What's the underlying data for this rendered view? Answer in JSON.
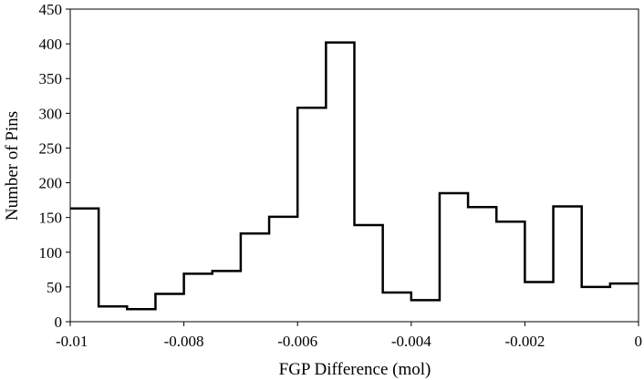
{
  "chart_data": {
    "type": "line",
    "subtype": "step-histogram",
    "xlabel": "FGP Difference (mol)",
    "ylabel": "Number of Pins",
    "xlim": [
      -0.01,
      0
    ],
    "ylim": [
      0,
      450
    ],
    "x_ticks": [
      -0.01,
      -0.008,
      -0.006,
      -0.004,
      -0.002,
      0
    ],
    "x_tick_labels": [
      "-0.01",
      "-0.008",
      "-0.006",
      "-0.004",
      "-0.002",
      "0"
    ],
    "y_ticks": [
      0,
      50,
      100,
      150,
      200,
      250,
      300,
      350,
      400,
      450
    ],
    "y_tick_labels": [
      "0",
      "50",
      "100",
      "150",
      "200",
      "250",
      "300",
      "350",
      "400",
      "450"
    ],
    "bin_width": 0.0005,
    "bin_starts": [
      -0.01,
      -0.0095,
      -0.009,
      -0.0085,
      -0.008,
      -0.0075,
      -0.007,
      -0.0065,
      -0.006,
      -0.0055,
      -0.005,
      -0.0045,
      -0.004,
      -0.0035,
      -0.003,
      -0.0025,
      -0.002,
      -0.0015,
      -0.001,
      -0.0005
    ],
    "values": [
      163,
      22,
      18,
      40,
      69,
      73,
      127,
      151,
      308,
      402,
      139,
      42,
      31,
      185,
      165,
      144,
      57,
      166,
      50,
      55
    ],
    "grid": false,
    "color": "#000000"
  }
}
